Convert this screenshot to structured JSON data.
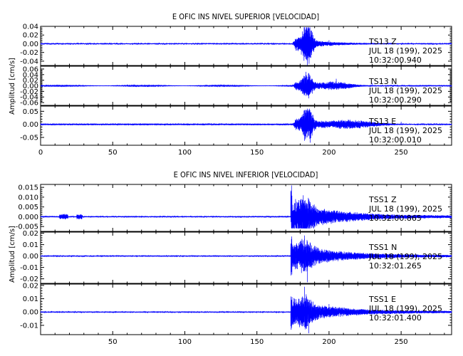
{
  "chart_data": [
    {
      "type": "line",
      "title": "E OFIC INS NIVEL SUPERIOR [VELOCIDAD]",
      "ylabel": "Amplitud [cm/s]",
      "xlim": [
        0,
        285
      ],
      "x_ticks": [
        0,
        50,
        100,
        150,
        200,
        250
      ],
      "x_tick_labels": [
        "0",
        "50",
        "100",
        "150",
        "200",
        "250"
      ],
      "color": "#0000ff",
      "panels": [
        {
          "station": "TS13",
          "component": "Z",
          "date": "JUL 18 (199), 2025",
          "time": "10:32:00.940",
          "ylim": [
            -0.05,
            0.04
          ],
          "y_ticks": [
            -0.04,
            -0.02,
            0.0,
            0.02,
            0.04
          ],
          "y_tick_labels": [
            "-0.04",
            "-0.02",
            "0.00",
            "0.02",
            "0.04"
          ],
          "series": [
            {
              "x": 0,
              "y": 0.0
            },
            {
              "x": 25,
              "y": 0.001
            },
            {
              "x": 175,
              "y": 0.004
            },
            {
              "x": 183,
              "y": 0.038
            },
            {
              "x": 185,
              "y": -0.049
            },
            {
              "x": 188,
              "y": 0.03
            },
            {
              "x": 200,
              "y": 0.008
            },
            {
              "x": 230,
              "y": 0.002
            },
            {
              "x": 285,
              "y": 0.0
            }
          ]
        },
        {
          "station": "TS13",
          "component": "N",
          "date": "JUL 18 (199), 2025",
          "time": "10:32:00.290",
          "ylim": [
            -0.07,
            0.07
          ],
          "y_ticks": [
            -0.06,
            -0.04,
            -0.02,
            0.0,
            0.02,
            0.04,
            0.06
          ],
          "y_tick_labels": [
            "-0.06",
            "-0.04",
            "-0.02",
            "0.00",
            "0.02",
            "0.04",
            "0.06"
          ],
          "series": [
            {
              "x": 0,
              "y": 0.0
            },
            {
              "x": 60,
              "y": 0.004
            },
            {
              "x": 175,
              "y": 0.005
            },
            {
              "x": 184,
              "y": 0.05
            },
            {
              "x": 186,
              "y": -0.045
            },
            {
              "x": 205,
              "y": 0.025
            },
            {
              "x": 230,
              "y": 0.01
            },
            {
              "x": 285,
              "y": 0.002
            }
          ]
        },
        {
          "station": "TS13",
          "component": "E",
          "date": "JUL 18 (199), 2025",
          "time": "10:32:00.010",
          "ylim": [
            -0.08,
            0.07
          ],
          "y_ticks": [
            -0.05,
            0.0,
            0.05
          ],
          "y_tick_labels": [
            "-0.05",
            "0.00",
            "0.05"
          ],
          "series": [
            {
              "x": 0,
              "y": 0.0
            },
            {
              "x": 100,
              "y": 0.003
            },
            {
              "x": 175,
              "y": 0.004
            },
            {
              "x": 185,
              "y": 0.06
            },
            {
              "x": 187,
              "y": -0.07
            },
            {
              "x": 210,
              "y": 0.015
            },
            {
              "x": 250,
              "y": 0.01
            },
            {
              "x": 285,
              "y": 0.002
            }
          ]
        }
      ]
    },
    {
      "type": "line",
      "title": "E OFIC INS NIVEL INFERIOR [VELOCIDAD]",
      "ylabel": "Amplitud [cm/s]",
      "xlim": [
        0,
        285
      ],
      "x_ticks": [
        50,
        100,
        150,
        200,
        250
      ],
      "x_tick_labels": [
        "50",
        "100",
        "150",
        "200",
        "250"
      ],
      "color": "#0000ff",
      "panels": [
        {
          "station": "TSS1",
          "component": "Z",
          "date": "JUL 18 (199), 2025",
          "time": "10:32:00.865",
          "ylim": [
            -0.0075,
            0.0165
          ],
          "y_ticks": [
            -0.005,
            0.0,
            0.005,
            0.01,
            0.015
          ],
          "y_tick_labels": [
            "-0.005",
            "0.000",
            "0.005",
            "0.010",
            "0.015"
          ],
          "series": [
            {
              "x": 0,
              "y": 0.0
            },
            {
              "x": 16,
              "y": 0.0004
            },
            {
              "x": 173,
              "y": 0.0003
            },
            {
              "x": 174,
              "y": 0.016
            },
            {
              "x": 176,
              "y": -0.006
            },
            {
              "x": 182,
              "y": 0.007
            },
            {
              "x": 200,
              "y": 0.002
            },
            {
              "x": 285,
              "y": 0.0
            }
          ]
        },
        {
          "station": "TSS1",
          "component": "N",
          "date": "JUL 18 (199), 2025",
          "time": "10:32:01.265",
          "ylim": [
            -0.024,
            0.021
          ],
          "y_ticks": [
            -0.02,
            -0.01,
            0.0,
            0.01,
            0.02
          ],
          "y_tick_labels": [
            "-0.02",
            "-0.01",
            "0.00",
            "0.01",
            "0.02"
          ],
          "series": [
            {
              "x": 0,
              "y": 0.0
            },
            {
              "x": 173,
              "y": 0.0003
            },
            {
              "x": 183,
              "y": 0.018
            },
            {
              "x": 185,
              "y": -0.023
            },
            {
              "x": 200,
              "y": 0.005
            },
            {
              "x": 250,
              "y": 0.001
            },
            {
              "x": 285,
              "y": 0.0
            }
          ]
        },
        {
          "station": "TSS1",
          "component": "E",
          "date": "JUL 18 (199), 2025",
          "time": "10:32:01.400",
          "ylim": [
            -0.017,
            0.021
          ],
          "y_ticks": [
            -0.01,
            0.0,
            0.01,
            0.02
          ],
          "y_tick_labels": [
            "-0.01",
            "0.00",
            "0.01",
            "0.02"
          ],
          "series": [
            {
              "x": 0,
              "y": 0.0
            },
            {
              "x": 173,
              "y": 0.0003
            },
            {
              "x": 183,
              "y": 0.019
            },
            {
              "x": 186,
              "y": -0.016
            },
            {
              "x": 200,
              "y": 0.006
            },
            {
              "x": 250,
              "y": 0.001
            },
            {
              "x": 285,
              "y": 0.0
            }
          ]
        }
      ]
    }
  ]
}
